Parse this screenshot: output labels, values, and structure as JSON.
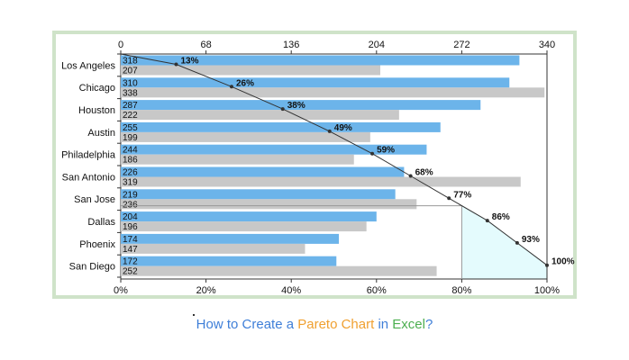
{
  "caption": {
    "segments": [
      {
        "text": "How to Create a ",
        "color": "#3f7fd8"
      },
      {
        "text": "Pareto Chart",
        "color": "#f0a030"
      },
      {
        "text": " in ",
        "color": "#3f7fd8"
      },
      {
        "text": "Excel",
        "color": "#4caf50"
      },
      {
        "text": "?",
        "color": "#3f7fd8"
      }
    ]
  },
  "colors": {
    "frame_border": "#cfe3c9",
    "series_blue": "#6cb4ea",
    "series_gray": "#c8c8c8",
    "pareto_line": "#333333",
    "shaded_region": "#e4fbfd"
  },
  "chart_data": {
    "type": "bar",
    "orientation": "horizontal",
    "title": "",
    "categories": [
      "Los Angeles",
      "Chicago",
      "Houston",
      "Austin",
      "Philadelphia",
      "San Antonio",
      "San Jose",
      "Dallas",
      "Phoenix",
      "San Diego"
    ],
    "series": [
      {
        "values": [
          318,
          310,
          287,
          255,
          244,
          226,
          219,
          204,
          174,
          172
        ]
      },
      {
        "values": [
          207,
          338,
          222,
          199,
          186,
          319,
          236,
          196,
          147,
          252
        ]
      }
    ],
    "top_axis": {
      "ticks": [
        "0",
        "68",
        "136",
        "204",
        "272",
        "340"
      ],
      "range": [
        0,
        340
      ]
    },
    "bottom_axis": {
      "ticks": [
        "0%",
        "20%",
        "40%",
        "60%",
        "80%",
        "100%"
      ],
      "range": [
        0,
        100
      ]
    },
    "cumulative_labels": [
      "13%",
      "26%",
      "38%",
      "49%",
      "59%",
      "68%",
      "77%",
      "86%",
      "93%",
      "100%"
    ],
    "cumulative_values": [
      13,
      26,
      38,
      49,
      59,
      68,
      77,
      86,
      93,
      100
    ],
    "cutoff_percent": 80,
    "grid": false,
    "legend": "none"
  }
}
